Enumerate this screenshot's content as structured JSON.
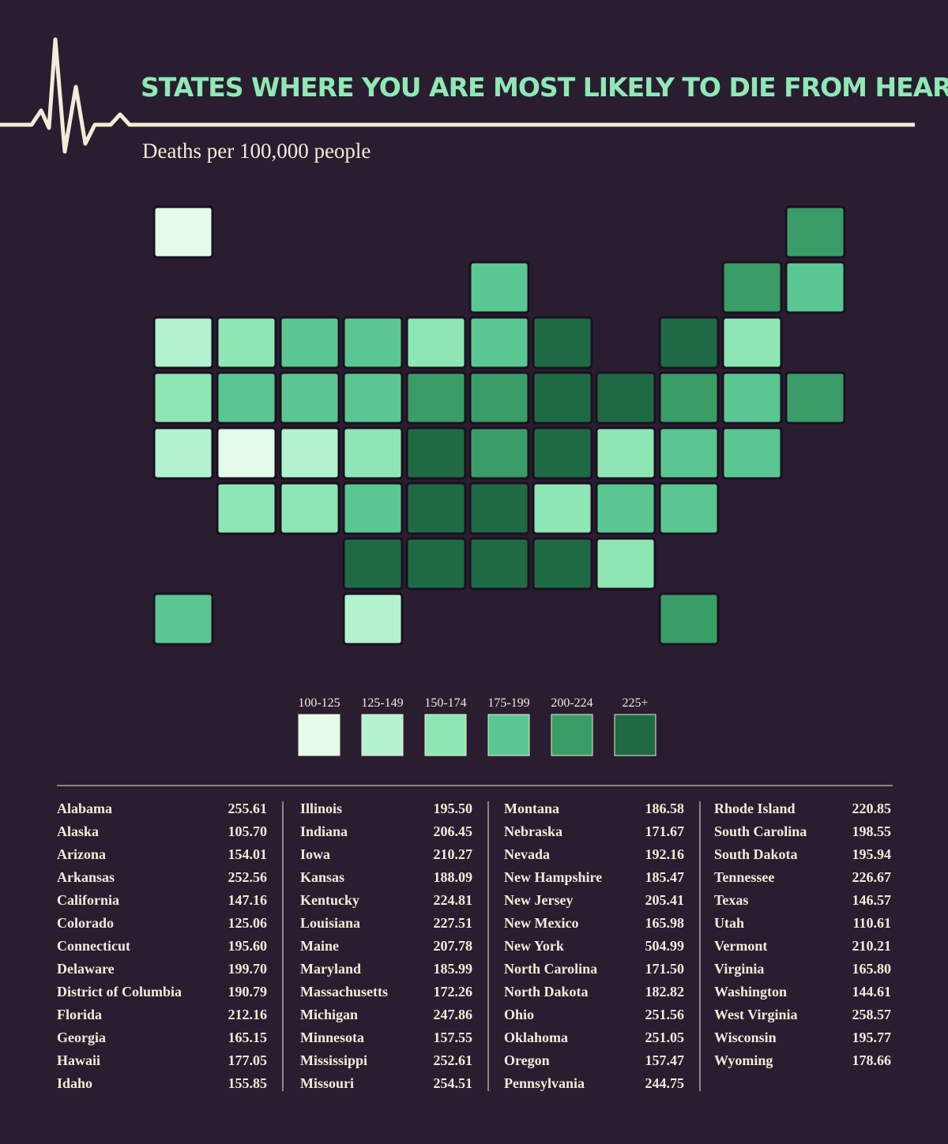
{
  "header": {
    "title": "STATES WHERE YOU ARE MOST LIKELY TO DIE FROM HEART DISEASE",
    "subtitle": "Deaths per 100,000 people"
  },
  "legend": [
    {
      "label": "100-125",
      "color": "#e4fbea"
    },
    {
      "label": "125-149",
      "color": "#b3f2cf"
    },
    {
      "label": "150-174",
      "color": "#8ee6b5"
    },
    {
      "label": "175-199",
      "color": "#5ac793"
    },
    {
      "label": "200-224",
      "color": "#3a9c67"
    },
    {
      "label": "225+",
      "color": "#1e6a44"
    }
  ],
  "table": {
    "columns": [
      [
        [
          "Alabama",
          "255.61"
        ],
        [
          "Alaska",
          "105.70"
        ],
        [
          "Arizona",
          "154.01"
        ],
        [
          "Arkansas",
          "252.56"
        ],
        [
          "California",
          "147.16"
        ],
        [
          "Colorado",
          "125.06"
        ],
        [
          "Connecticut",
          "195.60"
        ],
        [
          "Delaware",
          "199.70"
        ],
        [
          "District of Columbia",
          "190.79"
        ],
        [
          "Florida",
          "212.16"
        ],
        [
          "Georgia",
          "165.15"
        ],
        [
          "Hawaii",
          "177.05"
        ],
        [
          "Idaho",
          "155.85"
        ]
      ],
      [
        [
          "Illinois",
          "195.50"
        ],
        [
          "Indiana",
          "206.45"
        ],
        [
          "Iowa",
          "210.27"
        ],
        [
          "Kansas",
          "188.09"
        ],
        [
          "Kentucky",
          "224.81"
        ],
        [
          "Louisiana",
          "227.51"
        ],
        [
          "Maine",
          "207.78"
        ],
        [
          "Maryland",
          "185.99"
        ],
        [
          "Massachusetts",
          "172.26"
        ],
        [
          "Michigan",
          "247.86"
        ],
        [
          "Minnesota",
          "157.55"
        ],
        [
          "Mississippi",
          "252.61"
        ],
        [
          "Missouri",
          "254.51"
        ]
      ],
      [
        [
          "Montana",
          "186.58"
        ],
        [
          "Nebraska",
          "171.67"
        ],
        [
          "Nevada",
          "192.16"
        ],
        [
          "New Hampshire",
          "185.47"
        ],
        [
          "New Jersey",
          "205.41"
        ],
        [
          "New Mexico",
          "165.98"
        ],
        [
          "New York",
          "504.99"
        ],
        [
          "North Carolina",
          "171.50"
        ],
        [
          "North Dakota",
          "182.82"
        ],
        [
          "Ohio",
          "251.56"
        ],
        [
          "Oklahoma",
          "251.05"
        ],
        [
          "Oregon",
          "157.47"
        ],
        [
          "Pennsylvania",
          "244.75"
        ]
      ],
      [
        [
          "Rhode Island",
          "220.85"
        ],
        [
          "South Carolina",
          "198.55"
        ],
        [
          "South Dakota",
          "195.94"
        ],
        [
          "Tennessee",
          "226.67"
        ],
        [
          "Texas",
          "146.57"
        ],
        [
          "Utah",
          "110.61"
        ],
        [
          "Vermont",
          "210.21"
        ],
        [
          "Virginia",
          "165.80"
        ],
        [
          "Washington",
          "144.61"
        ],
        [
          "West Virginia",
          "258.57"
        ],
        [
          "Wisconsin",
          "195.77"
        ],
        [
          "Wyoming",
          "178.66"
        ]
      ]
    ]
  }
}
